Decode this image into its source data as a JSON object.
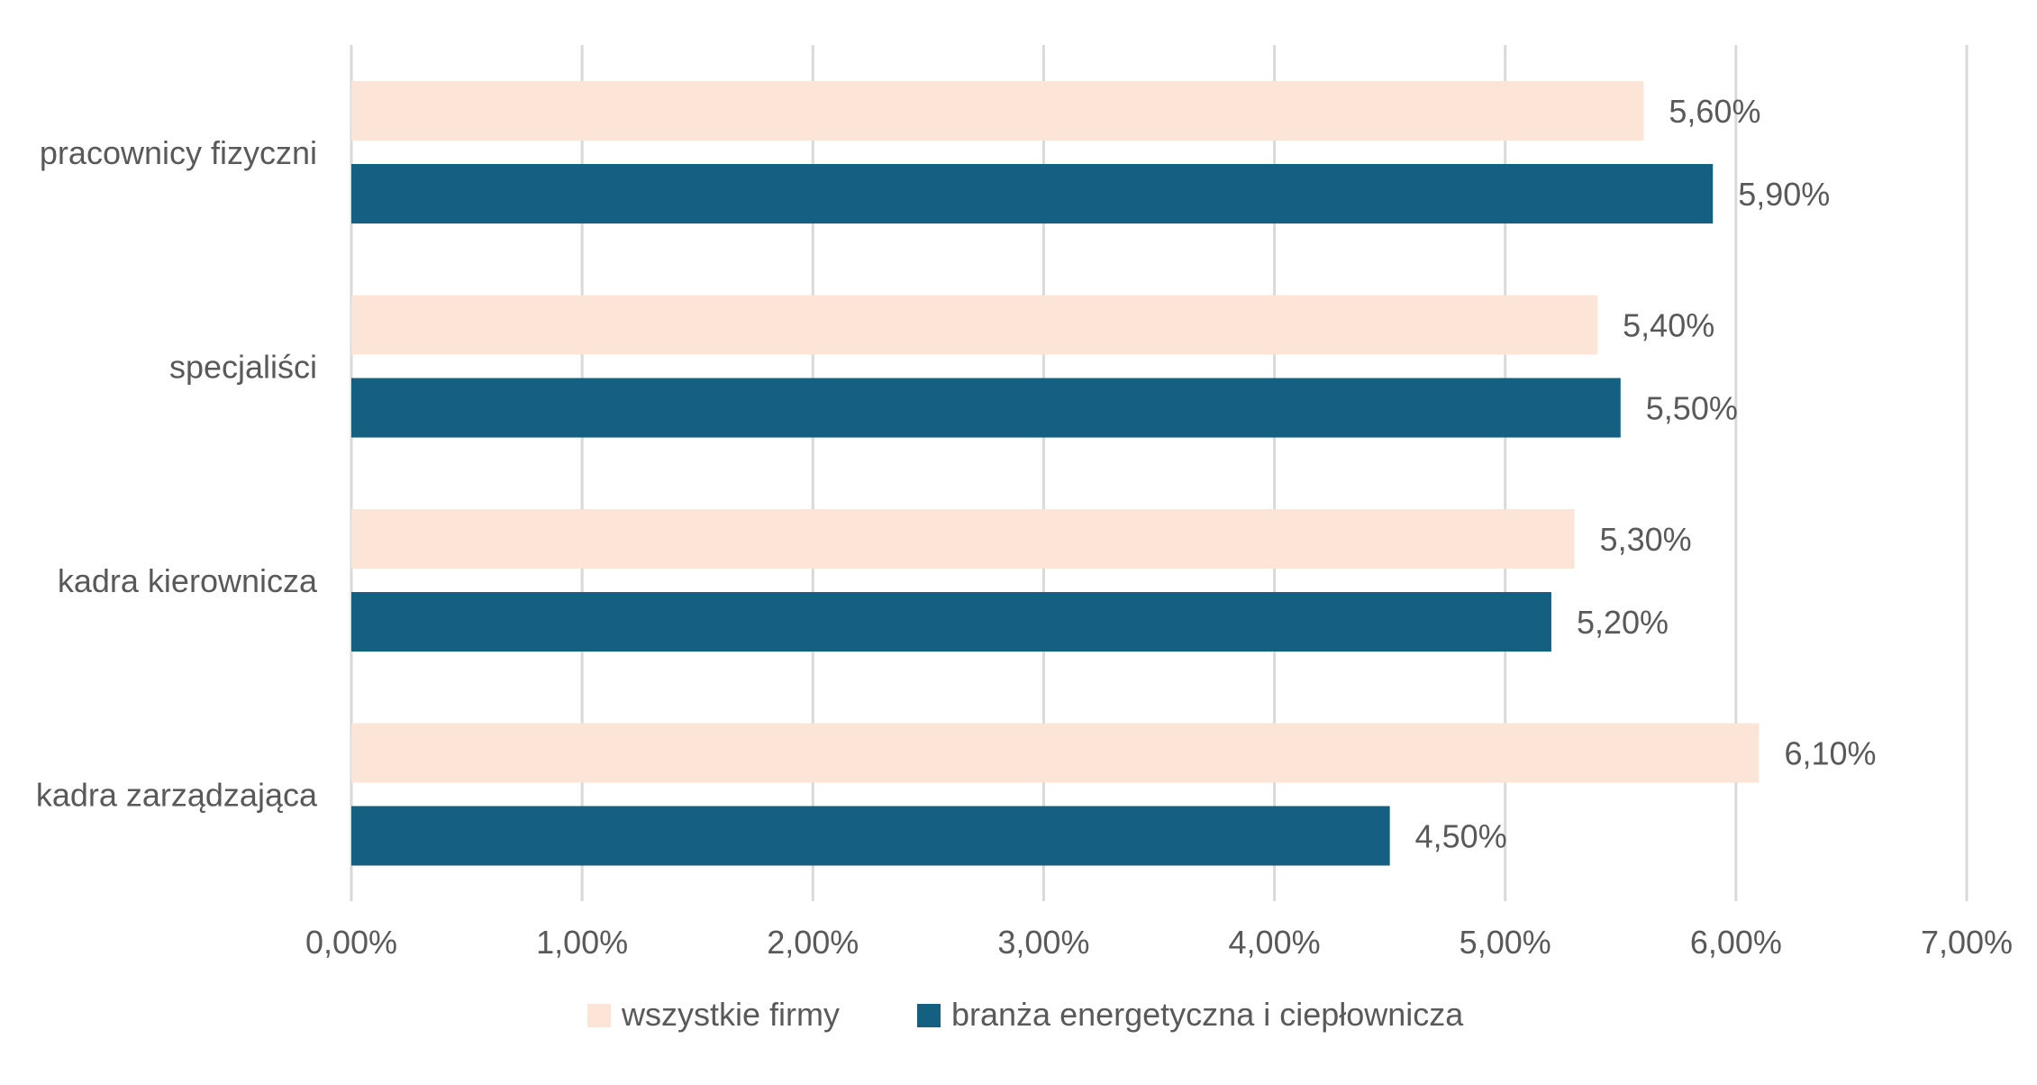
{
  "chart_data": {
    "type": "bar",
    "orientation": "horizontal",
    "categories": [
      "pracownicy fizyczni",
      "specjaliści",
      "kadra kierownicza",
      "kadra zarządzająca"
    ],
    "series": [
      {
        "name": "wszystkie firmy",
        "color": "#fce4d6",
        "values": [
          5.6,
          5.4,
          5.3,
          6.1
        ],
        "labels": [
          "5,60%",
          "5,40%",
          "5,30%",
          "6,10%"
        ]
      },
      {
        "name": "branża energetyczna i ciepłownicza",
        "color": "#156082",
        "values": [
          5.9,
          5.5,
          5.2,
          4.5
        ],
        "labels": [
          "5,90%",
          "5,50%",
          "5,20%",
          "4,50%"
        ]
      }
    ],
    "xlim": [
      0,
      7
    ],
    "xticks": [
      0,
      1,
      2,
      3,
      4,
      5,
      6,
      7
    ],
    "xtick_labels": [
      "0,00%",
      "1,00%",
      "2,00%",
      "3,00%",
      "4,00%",
      "5,00%",
      "6,00%",
      "7,00%"
    ],
    "title": "",
    "xlabel": "",
    "ylabel": "",
    "grid": "vertical",
    "legend_position": "bottom"
  },
  "colors": {
    "grid": "#d9d9d9",
    "text": "#595959"
  }
}
